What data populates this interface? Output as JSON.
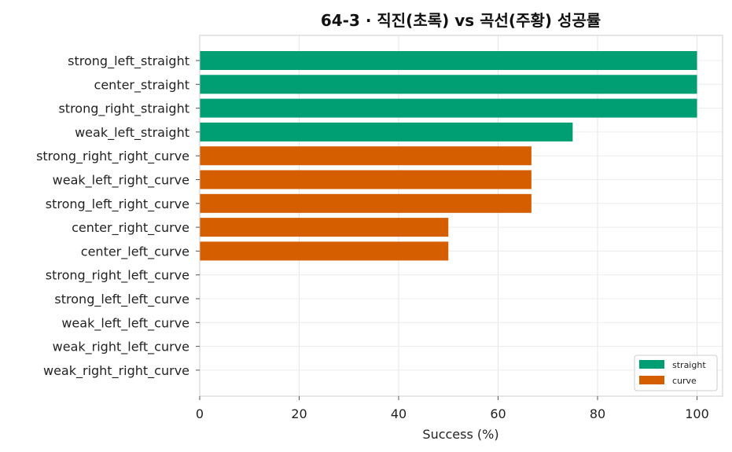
{
  "chart_data": {
    "type": "bar",
    "orientation": "horizontal",
    "title": "64-3 · 직진(초록) vs 곡선(주황) 성공률",
    "xlabel": "Success (%)",
    "ylabel": "",
    "xlim": [
      0,
      105
    ],
    "xticks": [
      0,
      20,
      40,
      60,
      80,
      100
    ],
    "grid": true,
    "legend_position": "bottom-right",
    "colors": {
      "straight": "#009E73",
      "curve": "#D55E00"
    },
    "legend": [
      {
        "name": "straight",
        "color": "#009E73"
      },
      {
        "name": "curve",
        "color": "#D55E00"
      }
    ],
    "bars": [
      {
        "label": "strong_left_straight",
        "value": 100,
        "group": "straight"
      },
      {
        "label": "center_straight",
        "value": 100,
        "group": "straight"
      },
      {
        "label": "strong_right_straight",
        "value": 100,
        "group": "straight"
      },
      {
        "label": "weak_left_straight",
        "value": 75,
        "group": "straight"
      },
      {
        "label": "strong_right_right_curve",
        "value": 66.7,
        "group": "curve"
      },
      {
        "label": "weak_left_right_curve",
        "value": 66.7,
        "group": "curve"
      },
      {
        "label": "strong_left_right_curve",
        "value": 66.7,
        "group": "curve"
      },
      {
        "label": "center_right_curve",
        "value": 50,
        "group": "curve"
      },
      {
        "label": "center_left_curve",
        "value": 50,
        "group": "curve"
      },
      {
        "label": "strong_right_left_curve",
        "value": 0,
        "group": "curve"
      },
      {
        "label": "strong_left_left_curve",
        "value": 0,
        "group": "curve"
      },
      {
        "label": "weak_left_left_curve",
        "value": 0,
        "group": "curve"
      },
      {
        "label": "weak_right_left_curve",
        "value": 0,
        "group": "curve"
      },
      {
        "label": "weak_right_right_curve",
        "value": 0,
        "group": "curve"
      }
    ]
  }
}
